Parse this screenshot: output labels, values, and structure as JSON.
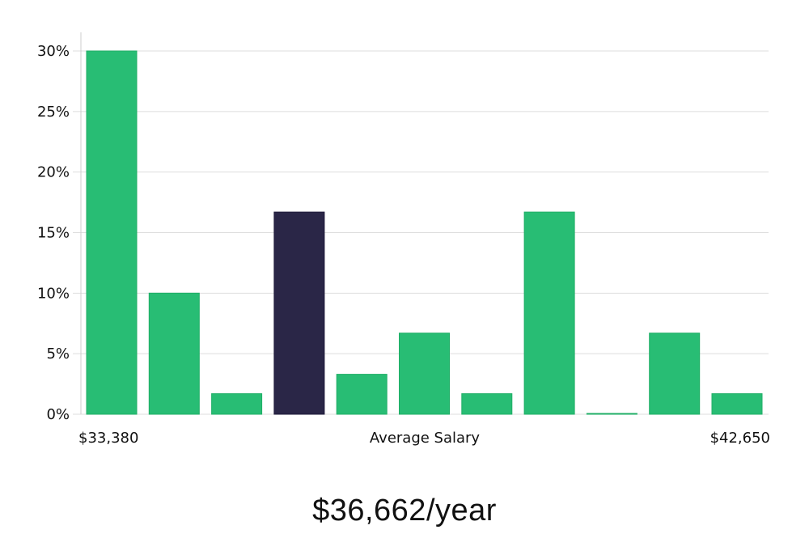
{
  "chart_data": {
    "type": "bar",
    "values": [
      30,
      10,
      1.7,
      16.7,
      3.3,
      6.7,
      1.7,
      16.7,
      0,
      6.7,
      1.7
    ],
    "highlight_index": 3,
    "ylim": [
      0,
      30
    ],
    "yticks": [
      "0%",
      "5%",
      "10%",
      "15%",
      "20%",
      "25%",
      "30%"
    ],
    "ytick_values": [
      0,
      5,
      10,
      15,
      20,
      25,
      30
    ],
    "x_min_label": "$33,380",
    "x_max_label": "$42,650",
    "xlabel": "Average Salary",
    "grid": true
  },
  "colors": {
    "bar": "#28bd74",
    "bar_edge": "#1fae66",
    "highlight": "#2a2647",
    "grid": "#dedede",
    "axis": "#cccccc"
  },
  "summary": {
    "text": "$36,662/year"
  }
}
